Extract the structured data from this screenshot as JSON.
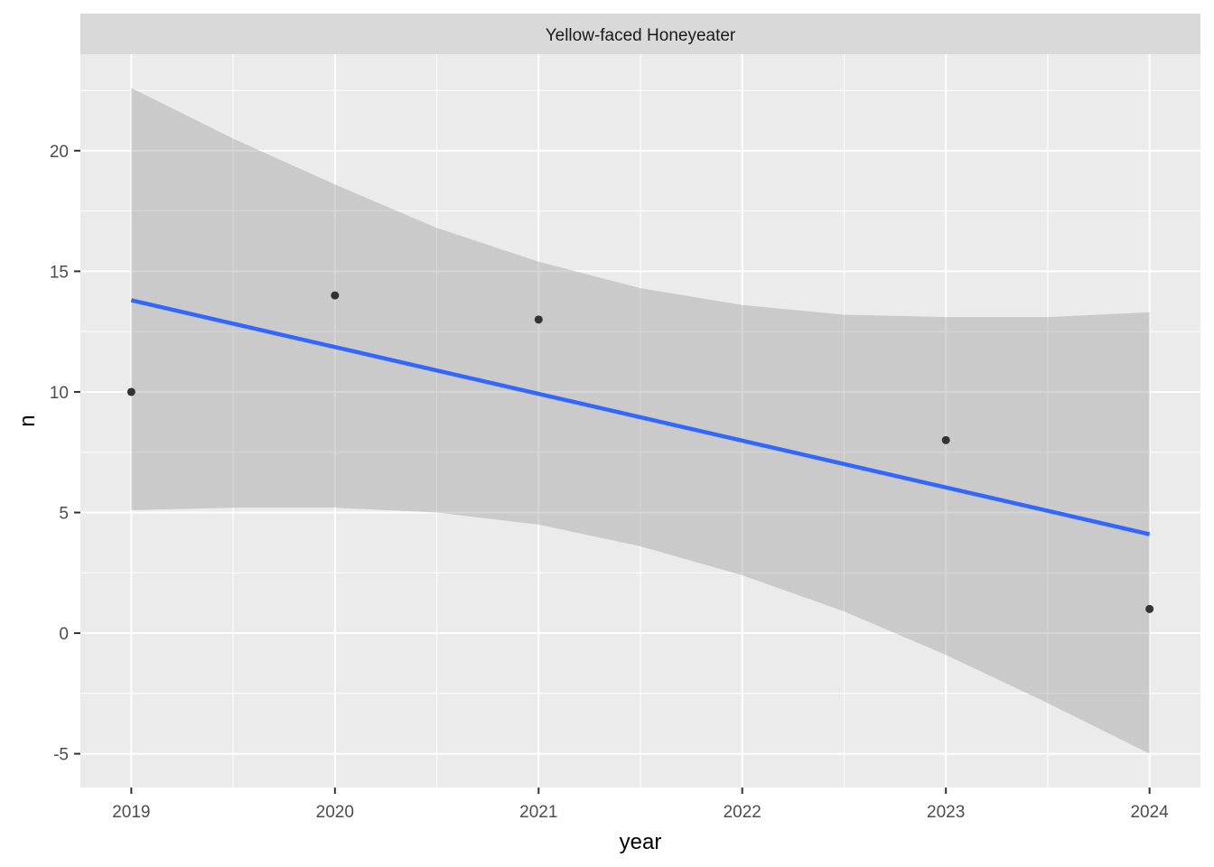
{
  "chart_data": {
    "type": "scatter",
    "facet_label": "Yellow-faced Honeyeater",
    "xlabel": "year",
    "ylabel": "n",
    "xlim": [
      2018.75,
      2024.25
    ],
    "ylim": [
      -6.4,
      24.0
    ],
    "x_ticks": [
      2019,
      2020,
      2021,
      2022,
      2023,
      2024
    ],
    "y_ticks": [
      -5,
      0,
      5,
      10,
      15,
      20
    ],
    "grid": true,
    "points": {
      "x": [
        2019,
        2020,
        2021,
        2023,
        2024
      ],
      "y": [
        10,
        14,
        13,
        8,
        1
      ]
    },
    "trend": {
      "method": "linear",
      "x": [
        2019,
        2024
      ],
      "y": [
        13.8,
        4.1
      ]
    },
    "confidence_band": {
      "x": [
        2019,
        2019.5,
        2020,
        2020.5,
        2021,
        2021.5,
        2022,
        2022.5,
        2023,
        2023.5,
        2024
      ],
      "upper": [
        22.6,
        20.5,
        18.6,
        16.8,
        15.4,
        14.3,
        13.6,
        13.2,
        13.1,
        13.1,
        13.3
      ],
      "lower": [
        5.1,
        5.2,
        5.2,
        5.0,
        4.5,
        3.6,
        2.4,
        0.9,
        -0.9,
        -2.9,
        -5.0
      ]
    },
    "colors": {
      "panel_background": "#ebebeb",
      "strip_background": "#d9d9d9",
      "grid": "#ffffff",
      "points": "#333333",
      "trend_line": "#3366ff",
      "band": "#999999"
    }
  }
}
